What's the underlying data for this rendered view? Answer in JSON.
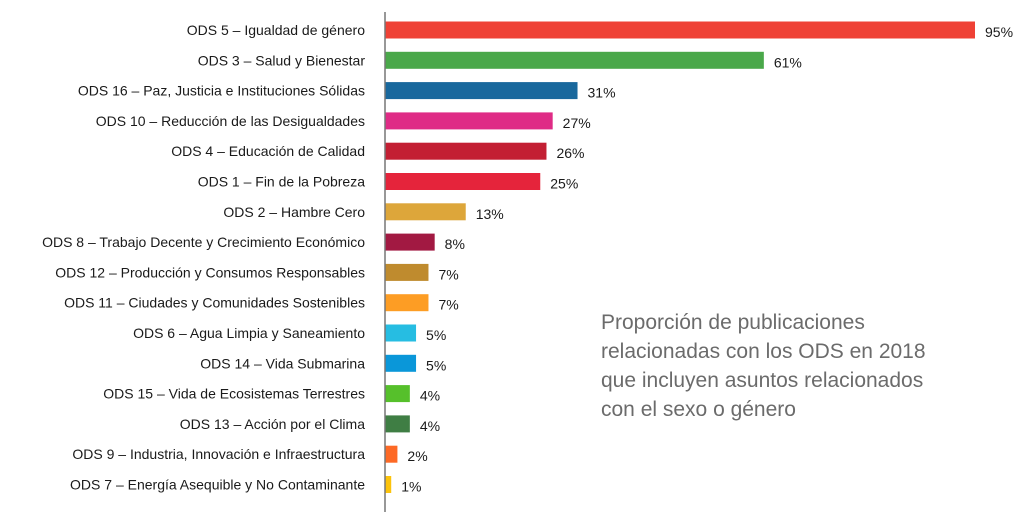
{
  "chart_data": {
    "type": "bar",
    "orientation": "horizontal",
    "xlim": [
      0,
      95
    ],
    "grid": false,
    "categories": [
      "ODS 5 – Igualdad de género",
      "ODS 3 – Salud y Bienestar",
      "ODS  16 – Paz, Justicia e Instituciones Sólidas",
      "ODS 10 – Reducción de las Desigualdades",
      "ODS 4 – Educación de Calidad",
      "ODS 1 – Fin de la Pobreza",
      "ODS 2 – Hambre Cero",
      "ODS 8 – Trabajo Decente y Crecimiento Económico",
      "ODS 12 – Producción y Consumos Responsables",
      "ODS 11 – Ciudades y Comunidades Sostenibles",
      "ODS 6 – Agua Limpia y Saneamiento",
      "ODS 14 – Vida Submarina",
      "ODS 15 – Vida de Ecosistemas Terrestres",
      "ODS 13 – Acción por el Clima",
      "ODS 9 – Industria, Innovación e Infraestructura",
      "ODS 7 – Energía Asequible y No Contaminante"
    ],
    "values": [
      95,
      61,
      31,
      27,
      26,
      25,
      13,
      8,
      7,
      7,
      5,
      5,
      4,
      4,
      2,
      1
    ],
    "value_labels": [
      "95%",
      "61%",
      "31%",
      "27%",
      "26%",
      "25%",
      "13%",
      "8%",
      "7%",
      "7%",
      "5%",
      "5%",
      "4%",
      "4%",
      "2%",
      "1%"
    ],
    "colors": [
      "#ef4135",
      "#4aa84a",
      "#19689d",
      "#df2b86",
      "#c31f33",
      "#e5243b",
      "#dda63a",
      "#a21942",
      "#bf8b2e",
      "#fd9d24",
      "#26bde2",
      "#0a97d9",
      "#56c02b",
      "#3f7e44",
      "#fd6925",
      "#fcc30b"
    ],
    "annotation": [
      "Proporción de publicaciones",
      "relacionadas con los ODS en 2018",
      "que incluyen asuntos relacionados",
      "con el sexo o género"
    ]
  }
}
